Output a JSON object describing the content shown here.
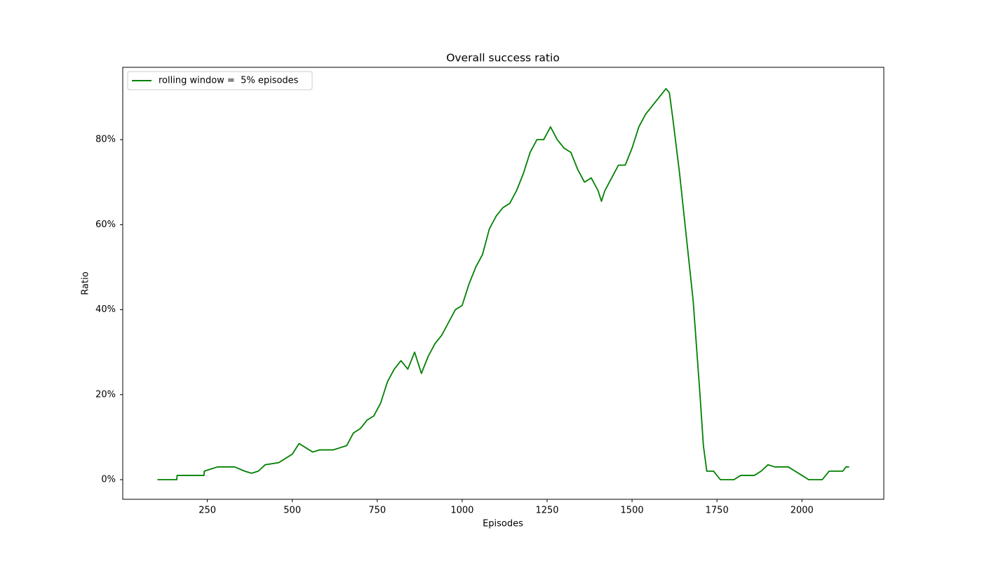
{
  "chart_data": {
    "type": "line",
    "title": "Overall success ratio",
    "x_label": "Episodes",
    "y_label": "Ratio",
    "x": [
      103,
      160,
      161,
      200,
      240,
      241,
      260,
      280,
      330,
      360,
      380,
      400,
      420,
      460,
      480,
      500,
      520,
      540,
      560,
      580,
      600,
      620,
      640,
      660,
      680,
      700,
      720,
      740,
      760,
      780,
      800,
      820,
      840,
      860,
      880,
      900,
      920,
      940,
      960,
      980,
      1000,
      1020,
      1040,
      1060,
      1080,
      1100,
      1120,
      1140,
      1160,
      1180,
      1200,
      1220,
      1240,
      1260,
      1280,
      1300,
      1320,
      1340,
      1360,
      1380,
      1400,
      1410,
      1420,
      1440,
      1460,
      1480,
      1500,
      1520,
      1540,
      1560,
      1580,
      1600,
      1610,
      1620,
      1640,
      1660,
      1680,
      1700,
      1710,
      1720,
      1740,
      1760,
      1800,
      1820,
      1860,
      1880,
      1900,
      1920,
      1960,
      1980,
      2000,
      2020,
      2060,
      2080,
      2100,
      2120,
      2130,
      2139
    ],
    "series": [
      {
        "name": "rolling window =  5% episodes",
        "color": "#008000",
        "values": [
          0,
          0,
          1,
          1,
          1,
          2,
          2.5,
          3,
          3,
          2,
          1.5,
          2,
          3.5,
          4,
          5,
          6,
          8.5,
          7.5,
          6.5,
          7,
          7,
          7,
          7.5,
          8,
          11,
          12,
          14,
          15,
          18,
          23,
          26,
          28,
          26,
          30,
          25,
          29,
          32,
          34,
          37,
          40,
          41,
          46,
          50,
          53,
          59,
          62,
          64,
          65,
          68,
          72,
          77,
          80,
          80,
          83,
          80,
          78,
          77,
          73,
          70,
          71,
          68,
          65.5,
          68,
          71,
          74,
          74,
          78,
          83,
          86,
          88,
          90,
          92,
          91,
          85,
          72,
          57,
          42,
          20,
          8,
          2,
          2,
          0,
          0,
          1,
          1,
          2,
          3.5,
          3,
          3,
          2,
          1,
          0,
          0,
          2,
          2,
          2,
          3,
          3
        ]
      }
    ],
    "xlim": [
      1,
      2241
    ],
    "ylim": [
      -4.62,
      97.02
    ],
    "xticks": [
      250,
      500,
      750,
      1000,
      1250,
      1500,
      1750,
      2000
    ],
    "yticks": [
      {
        "value": 0,
        "label": "0%"
      },
      {
        "value": 20,
        "label": "20%"
      },
      {
        "value": 40,
        "label": "40%"
      },
      {
        "value": 60,
        "label": "60%"
      },
      {
        "value": 80,
        "label": "80%"
      }
    ],
    "legend": "upper left"
  }
}
